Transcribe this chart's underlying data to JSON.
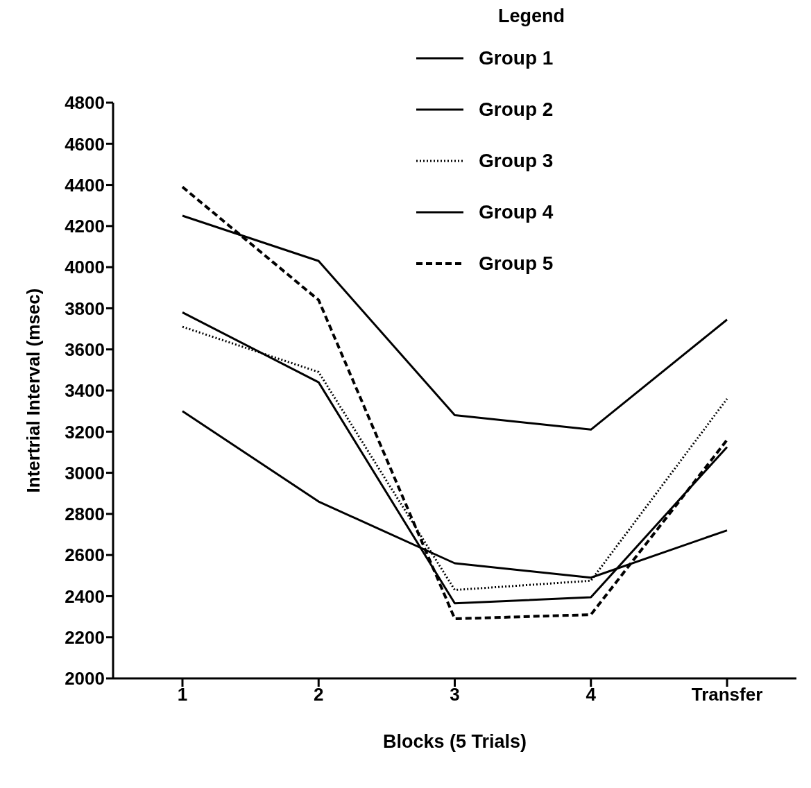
{
  "chart_data": {
    "type": "line",
    "xlabel": "Blocks (5 Trials)",
    "ylabel": "Intertrial Interval (msec)",
    "legend_title": "Legend",
    "legend": "top right",
    "grid": false,
    "marker": "none",
    "categories": [
      "1",
      "2",
      "3",
      "4",
      "Transfer"
    ],
    "ylim": [
      2000,
      4800
    ],
    "yticks": [
      2000,
      2200,
      2400,
      2600,
      2800,
      3000,
      3200,
      3400,
      3600,
      3800,
      4000,
      4200,
      4400,
      4600,
      4800
    ],
    "series": [
      {
        "name": "Group 1",
        "color": "#000000",
        "line_style": "solid",
        "values": [
          4250,
          4030,
          3280,
          3210,
          3745
        ]
      },
      {
        "name": "Group 2",
        "color": "#000000",
        "line_style": "solid",
        "values": [
          3780,
          3440,
          2365,
          2395,
          3125
        ]
      },
      {
        "name": "Group 3",
        "color": "#000000",
        "line_style": "dotted",
        "values": [
          3710,
          3490,
          2430,
          2475,
          3360
        ]
      },
      {
        "name": "Group 4",
        "color": "#000000",
        "line_style": "solid",
        "values": [
          3300,
          2860,
          2560,
          2490,
          2720
        ]
      },
      {
        "name": "Group 5",
        "color": "#000000",
        "line_style": "dashed",
        "values": [
          4390,
          3840,
          2290,
          2310,
          3160
        ]
      }
    ]
  }
}
